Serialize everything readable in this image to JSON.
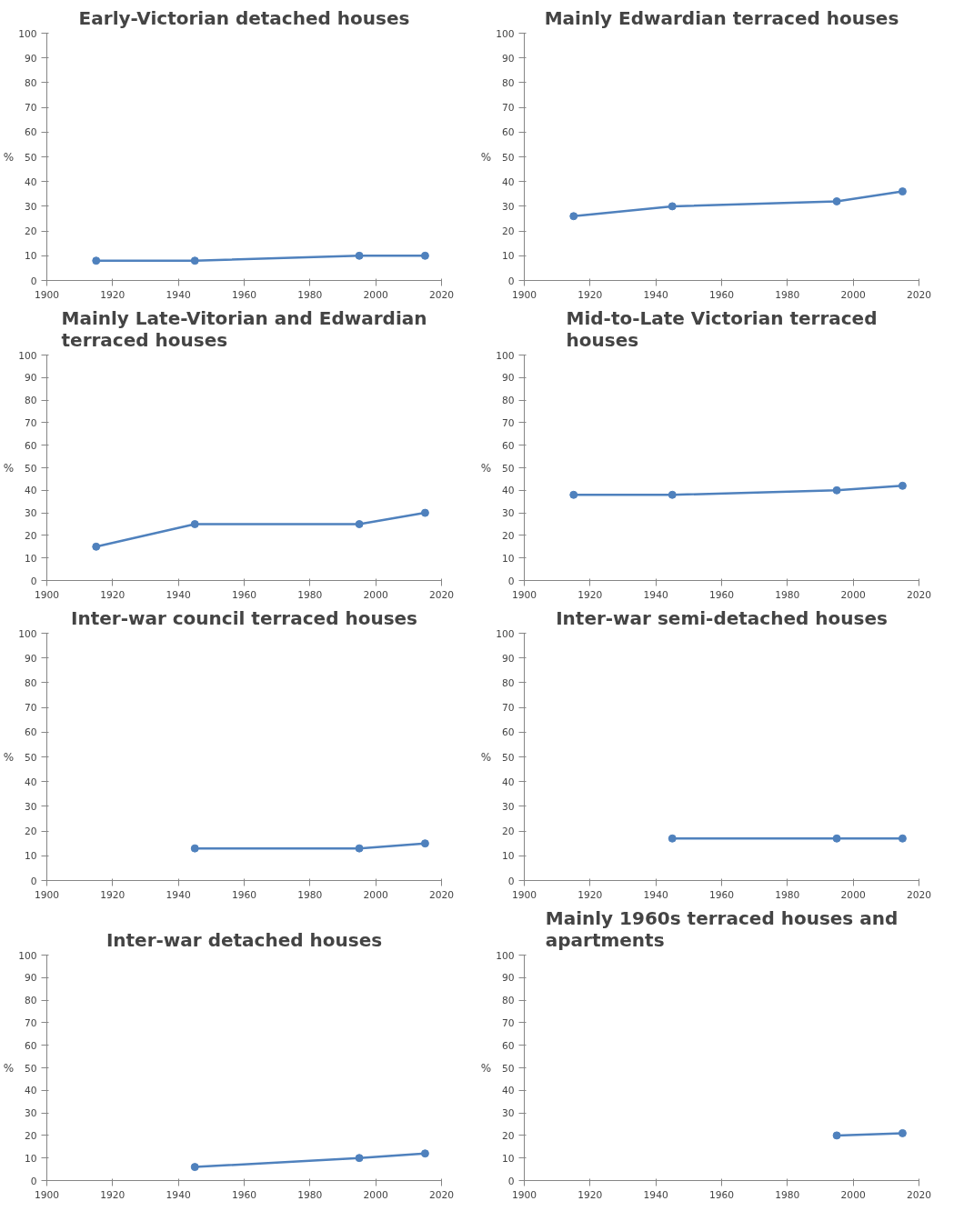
{
  "chart_data": [
    {
      "type": "line",
      "title": "Early-Victorian detached houses",
      "ylabel": "%",
      "x": [
        1915,
        1945,
        1995,
        2015
      ],
      "series": [
        {
          "color": "#4f81bd",
          "values": [
            8,
            8,
            10,
            10
          ]
        }
      ],
      "xlim": [
        1900,
        2020
      ],
      "xticks": [
        1900,
        1920,
        1940,
        1960,
        1980,
        2000,
        2020
      ],
      "ylim": [
        0,
        100
      ],
      "yticks": [
        0,
        10,
        20,
        30,
        40,
        50,
        60,
        70,
        80,
        90,
        100
      ],
      "grid": false,
      "marker": "circle",
      "line_style": "solid"
    },
    {
      "type": "line",
      "title": "Mainly Edwardian terraced houses",
      "ylabel": "%",
      "x": [
        1915,
        1945,
        1995,
        2015
      ],
      "series": [
        {
          "color": "#4f81bd",
          "values": [
            26,
            30,
            32,
            36
          ]
        }
      ],
      "xlim": [
        1900,
        2020
      ],
      "xticks": [
        1900,
        1920,
        1940,
        1960,
        1980,
        2000,
        2020
      ],
      "ylim": [
        0,
        100
      ],
      "yticks": [
        0,
        10,
        20,
        30,
        40,
        50,
        60,
        70,
        80,
        90,
        100
      ],
      "grid": false,
      "marker": "circle",
      "line_style": "solid"
    },
    {
      "type": "line",
      "title": "Mainly Late-Vitorian and Edwardian terraced houses",
      "ylabel": "%",
      "x": [
        1915,
        1945,
        1995,
        2015
      ],
      "series": [
        {
          "color": "#4f81bd",
          "values": [
            15,
            25,
            25,
            30
          ]
        }
      ],
      "xlim": [
        1900,
        2020
      ],
      "xticks": [
        1900,
        1920,
        1940,
        1960,
        1980,
        2000,
        2020
      ],
      "ylim": [
        0,
        100
      ],
      "yticks": [
        0,
        10,
        20,
        30,
        40,
        50,
        60,
        70,
        80,
        90,
        100
      ],
      "grid": false,
      "marker": "circle",
      "line_style": "solid"
    },
    {
      "type": "line",
      "title": "Mid-to-Late Victorian terraced houses",
      "ylabel": "%",
      "x": [
        1915,
        1945,
        1995,
        2015
      ],
      "series": [
        {
          "color": "#4f81bd",
          "values": [
            38,
            38,
            40,
            42
          ]
        }
      ],
      "xlim": [
        1900,
        2020
      ],
      "xticks": [
        1900,
        1920,
        1940,
        1960,
        1980,
        2000,
        2020
      ],
      "ylim": [
        0,
        100
      ],
      "yticks": [
        0,
        10,
        20,
        30,
        40,
        50,
        60,
        70,
        80,
        90,
        100
      ],
      "grid": false,
      "marker": "circle",
      "line_style": "solid"
    },
    {
      "type": "line",
      "title": "Inter-war council terraced houses",
      "ylabel": "%",
      "x": [
        1945,
        1995,
        2015
      ],
      "series": [
        {
          "color": "#4f81bd",
          "values": [
            13,
            13,
            15
          ]
        }
      ],
      "xlim": [
        1900,
        2020
      ],
      "xticks": [
        1900,
        1920,
        1940,
        1960,
        1980,
        2000,
        2020
      ],
      "ylim": [
        0,
        100
      ],
      "yticks": [
        0,
        10,
        20,
        30,
        40,
        50,
        60,
        70,
        80,
        90,
        100
      ],
      "grid": false,
      "marker": "circle",
      "line_style": "solid"
    },
    {
      "type": "line",
      "title": "Inter-war semi-detached houses",
      "ylabel": "%",
      "x": [
        1945,
        1995,
        2015
      ],
      "series": [
        {
          "color": "#4f81bd",
          "values": [
            17,
            17,
            17
          ]
        }
      ],
      "xlim": [
        1900,
        2020
      ],
      "xticks": [
        1900,
        1920,
        1940,
        1960,
        1980,
        2000,
        2020
      ],
      "ylim": [
        0,
        100
      ],
      "yticks": [
        0,
        10,
        20,
        30,
        40,
        50,
        60,
        70,
        80,
        90,
        100
      ],
      "grid": false,
      "marker": "circle",
      "line_style": "solid"
    },
    {
      "type": "line",
      "title": "Inter-war detached houses",
      "ylabel": "%",
      "x": [
        1945,
        1995,
        2015
      ],
      "series": [
        {
          "color": "#4f81bd",
          "values": [
            6,
            10,
            12
          ]
        }
      ],
      "xlim": [
        1900,
        2020
      ],
      "xticks": [
        1900,
        1920,
        1940,
        1960,
        1980,
        2000,
        2020
      ],
      "ylim": [
        0,
        100
      ],
      "yticks": [
        0,
        10,
        20,
        30,
        40,
        50,
        60,
        70,
        80,
        90,
        100
      ],
      "grid": false,
      "marker": "circle",
      "line_style": "solid"
    },
    {
      "type": "line",
      "title": "Mainly 1960s terraced houses and apartments",
      "ylabel": "%",
      "x": [
        1995,
        2015
      ],
      "series": [
        {
          "color": "#4f81bd",
          "values": [
            20,
            21
          ]
        }
      ],
      "xlim": [
        1900,
        2020
      ],
      "xticks": [
        1900,
        1920,
        1940,
        1960,
        1980,
        2000,
        2020
      ],
      "ylim": [
        0,
        100
      ],
      "yticks": [
        0,
        10,
        20,
        30,
        40,
        50,
        60,
        70,
        80,
        90,
        100
      ],
      "grid": false,
      "marker": "circle",
      "line_style": "solid"
    }
  ]
}
